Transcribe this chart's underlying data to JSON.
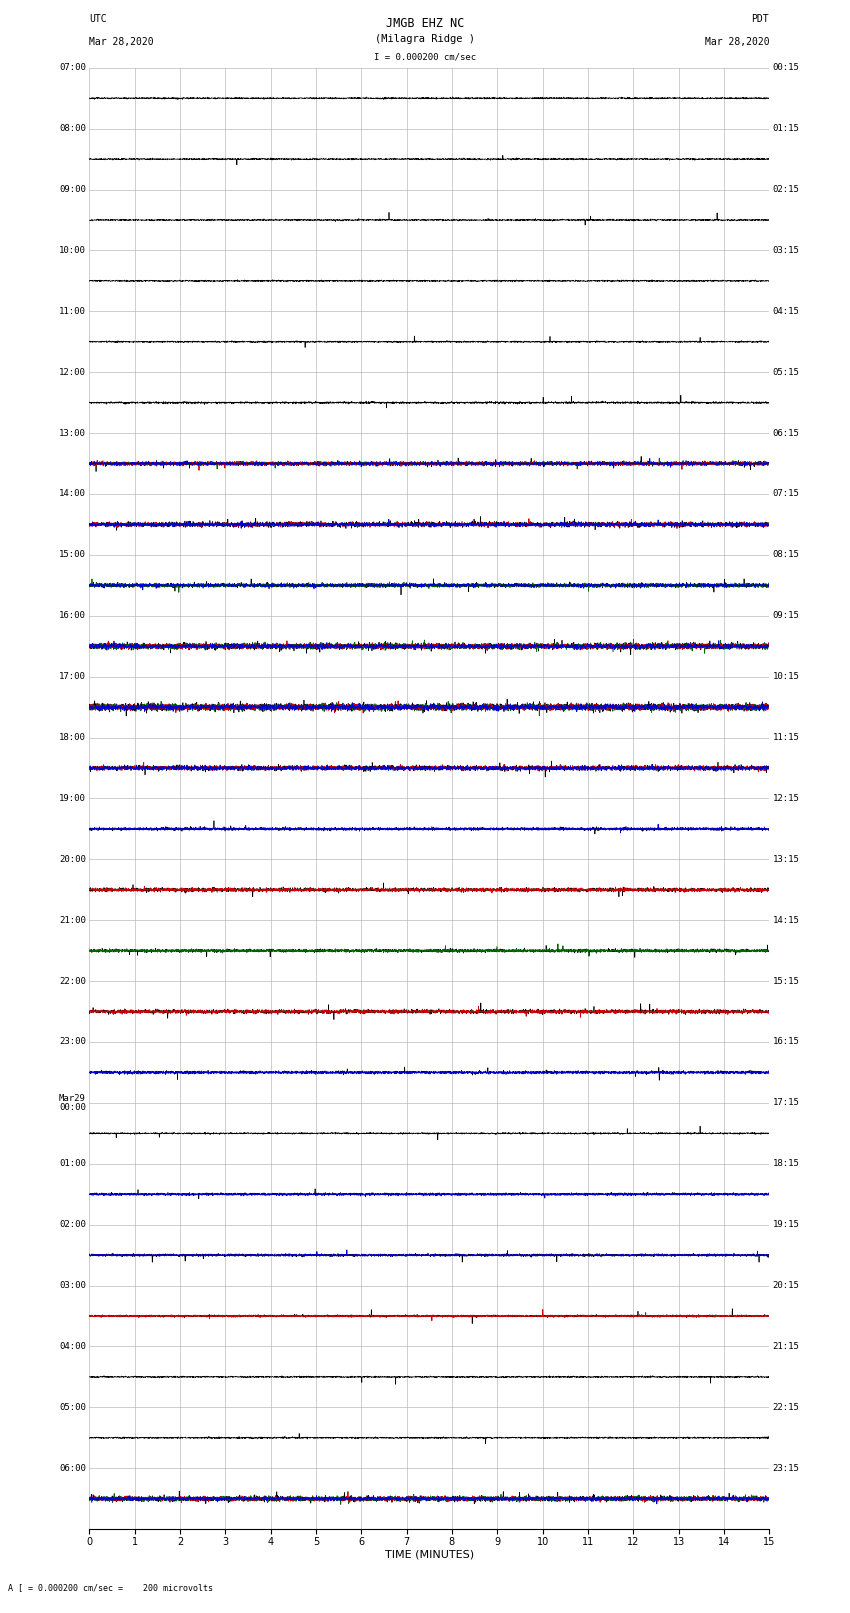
{
  "title_line1": "JMGB EHZ NC",
  "title_line2": "(Milagra Ridge )",
  "scale_text": "I = 0.000200 cm/sec",
  "left_label": "UTC",
  "left_date": "Mar 28,2020",
  "right_label": "PDT",
  "right_date": "Mar 28,2020",
  "bottom_label": "TIME (MINUTES)",
  "bottom_note": "A [ = 0.000200 cm/sec =    200 microvolts",
  "num_rows": 24,
  "display_minutes": 15,
  "x_ticks": [
    0,
    1,
    2,
    3,
    4,
    5,
    6,
    7,
    8,
    9,
    10,
    11,
    12,
    13,
    14,
    15
  ],
  "left_times": [
    "07:00",
    "08:00",
    "09:00",
    "10:00",
    "11:00",
    "12:00",
    "13:00",
    "14:00",
    "15:00",
    "16:00",
    "17:00",
    "18:00",
    "19:00",
    "20:00",
    "21:00",
    "22:00",
    "23:00",
    "Mar29\n00:00",
    "01:00",
    "02:00",
    "03:00",
    "04:00",
    "05:00",
    "06:00"
  ],
  "right_times": [
    "00:15",
    "01:15",
    "02:15",
    "03:15",
    "04:15",
    "05:15",
    "06:15",
    "07:15",
    "08:15",
    "09:15",
    "10:15",
    "11:15",
    "12:15",
    "13:15",
    "14:15",
    "15:15",
    "16:15",
    "17:15",
    "18:15",
    "19:15",
    "20:15",
    "21:15",
    "22:15",
    "23:15"
  ],
  "bg_color": "#ffffff",
  "grid_color": "#aaaaaa",
  "trace_black": "#000000",
  "trace_blue": "#0000cc",
  "trace_red": "#cc0000",
  "trace_green": "#006600",
  "fig_width": 8.5,
  "fig_height": 16.13,
  "row_traces": [
    {
      "black": true,
      "red": false,
      "blue": false,
      "green": false,
      "noise": 0.015,
      "spikes": 0.001
    },
    {
      "black": true,
      "red": false,
      "blue": false,
      "green": false,
      "noise": 0.015,
      "spikes": 0.001
    },
    {
      "black": true,
      "red": false,
      "blue": false,
      "green": false,
      "noise": 0.015,
      "spikes": 0.001
    },
    {
      "black": true,
      "red": false,
      "blue": false,
      "green": false,
      "noise": 0.015,
      "spikes": 0.001
    },
    {
      "black": true,
      "red": false,
      "blue": false,
      "green": false,
      "noise": 0.015,
      "spikes": 0.001
    },
    {
      "black": true,
      "red": false,
      "blue": false,
      "green": false,
      "noise": 0.02,
      "spikes": 0.002
    },
    {
      "black": true,
      "red": true,
      "blue": true,
      "green": true,
      "noise": 0.04,
      "spikes": 0.003
    },
    {
      "black": true,
      "red": true,
      "blue": true,
      "green": false,
      "noise": 0.05,
      "spikes": 0.004
    },
    {
      "black": true,
      "red": false,
      "blue": true,
      "green": true,
      "noise": 0.04,
      "spikes": 0.003
    },
    {
      "black": true,
      "red": true,
      "blue": true,
      "green": true,
      "noise": 0.06,
      "spikes": 0.005
    },
    {
      "black": true,
      "red": true,
      "blue": true,
      "green": true,
      "noise": 0.07,
      "spikes": 0.006
    },
    {
      "black": true,
      "red": true,
      "blue": true,
      "green": false,
      "noise": 0.05,
      "spikes": 0.004
    },
    {
      "black": true,
      "red": false,
      "blue": true,
      "green": false,
      "noise": 0.03,
      "spikes": 0.002
    },
    {
      "black": true,
      "red": true,
      "blue": false,
      "green": false,
      "noise": 0.04,
      "spikes": 0.003
    },
    {
      "black": true,
      "red": false,
      "blue": false,
      "green": true,
      "noise": 0.03,
      "spikes": 0.002
    },
    {
      "black": true,
      "red": true,
      "blue": false,
      "green": false,
      "noise": 0.04,
      "spikes": 0.003
    },
    {
      "black": true,
      "red": false,
      "blue": true,
      "green": false,
      "noise": 0.03,
      "spikes": 0.002
    },
    {
      "black": true,
      "red": false,
      "blue": false,
      "green": false,
      "noise": 0.015,
      "spikes": 0.001
    },
    {
      "black": true,
      "red": false,
      "blue": true,
      "green": false,
      "noise": 0.025,
      "spikes": 0.002
    },
    {
      "black": true,
      "red": false,
      "blue": true,
      "green": false,
      "noise": 0.025,
      "spikes": 0.002
    },
    {
      "black": true,
      "red": true,
      "blue": false,
      "green": false,
      "noise": 0.02,
      "spikes": 0.002
    },
    {
      "black": true,
      "red": false,
      "blue": false,
      "green": false,
      "noise": 0.015,
      "spikes": 0.001
    },
    {
      "black": true,
      "red": false,
      "blue": false,
      "green": false,
      "noise": 0.015,
      "spikes": 0.001
    },
    {
      "black": true,
      "red": true,
      "blue": true,
      "green": true,
      "noise": 0.05,
      "spikes": 0.004
    }
  ]
}
